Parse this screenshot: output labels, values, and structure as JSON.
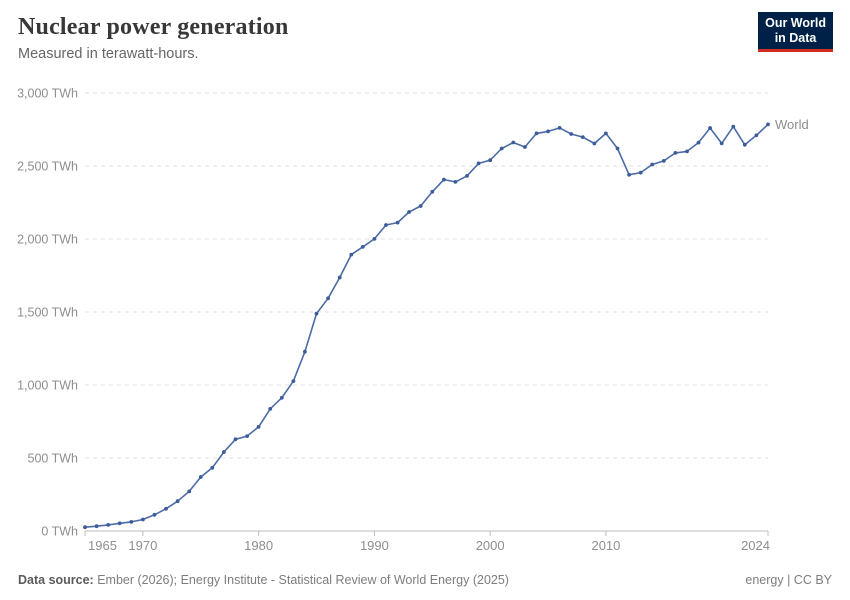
{
  "header": {
    "title": "Nuclear power generation",
    "subtitle": "Measured in terawatt-hours.",
    "logo": {
      "line1": "Our World",
      "line2": "in Data",
      "bg_color": "#002147",
      "accent_color": "#d42b21"
    }
  },
  "chart_data": {
    "type": "line",
    "title": "Nuclear power generation",
    "unit": "TWh",
    "grid": "horizontal-dashed",
    "legend_position": "end-of-line-label",
    "ylim": [
      0,
      3000
    ],
    "y_ticks": [
      0,
      500,
      1000,
      1500,
      2000,
      2500,
      3000
    ],
    "y_tick_labels": [
      "0 TWh",
      "500 TWh",
      "1,000 TWh",
      "1,500 TWh",
      "2,000 TWh",
      "2,500 TWh",
      "3,000 TWh"
    ],
    "x_ticks": [
      1965,
      1970,
      1980,
      1990,
      2000,
      2010,
      2024
    ],
    "x_tick_labels": [
      "1965",
      "1970",
      "1980",
      "1990",
      "2000",
      "2010",
      "2024"
    ],
    "x": [
      1965,
      1966,
      1967,
      1968,
      1969,
      1970,
      1971,
      1972,
      1973,
      1974,
      1975,
      1976,
      1977,
      1978,
      1979,
      1980,
      1981,
      1982,
      1983,
      1984,
      1985,
      1986,
      1987,
      1988,
      1989,
      1990,
      1991,
      1992,
      1993,
      1994,
      1995,
      1996,
      1997,
      1998,
      1999,
      2000,
      2001,
      2002,
      2003,
      2004,
      2005,
      2006,
      2007,
      2008,
      2009,
      2010,
      2011,
      2012,
      2013,
      2014,
      2015,
      2016,
      2017,
      2018,
      2019,
      2020,
      2021,
      2022,
      2023,
      2024
    ],
    "series": [
      {
        "name": "World",
        "color": "#4c6ba6",
        "marker_color": "#3d5c9a",
        "values": [
          26,
          33,
          42,
          53,
          62,
          79,
          111,
          152,
          204,
          271,
          370,
          433,
          541,
          628,
          650,
          713,
          836,
          912,
          1027,
          1228,
          1489,
          1594,
          1736,
          1893,
          1946,
          2001,
          2096,
          2112,
          2185,
          2226,
          2323,
          2407,
          2391,
          2432,
          2518,
          2540,
          2620,
          2661,
          2630,
          2723,
          2737,
          2761,
          2719,
          2698,
          2654,
          2723,
          2620,
          2440,
          2455,
          2510,
          2535,
          2590,
          2600,
          2660,
          2760,
          2655,
          2770,
          2645,
          2710,
          2785
        ]
      }
    ],
    "axis_color": "#bdbdbd",
    "gridline_color": "#e2e2e2"
  },
  "footer": {
    "source_label": "Data source:",
    "source_text": " Ember (2026); Energy Institute - Statistical Review of World Energy (2025)",
    "license": "energy | CC BY"
  }
}
